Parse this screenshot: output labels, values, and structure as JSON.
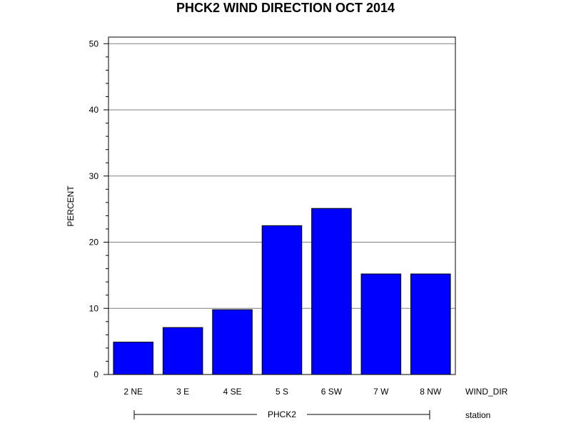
{
  "chart_data": {
    "type": "bar",
    "title": "PHCK2 WIND DIRECTION OCT 2014",
    "ylabel": "PERCENT",
    "xlabel": "WIND_DIR",
    "group_label": "station",
    "group_name": "PHCK2",
    "categories": [
      "2 NE",
      "3 E",
      "4 SE",
      "5 S",
      "6 SW",
      "7 W",
      "8 NW"
    ],
    "values": [
      4.9,
      7.1,
      9.8,
      22.5,
      25.1,
      15.2,
      15.2
    ],
    "ylim": [
      0,
      51
    ],
    "yticks": [
      0,
      10,
      20,
      30,
      40,
      50
    ],
    "grid": true,
    "bar_color": "#0000ff",
    "legend": "none"
  }
}
